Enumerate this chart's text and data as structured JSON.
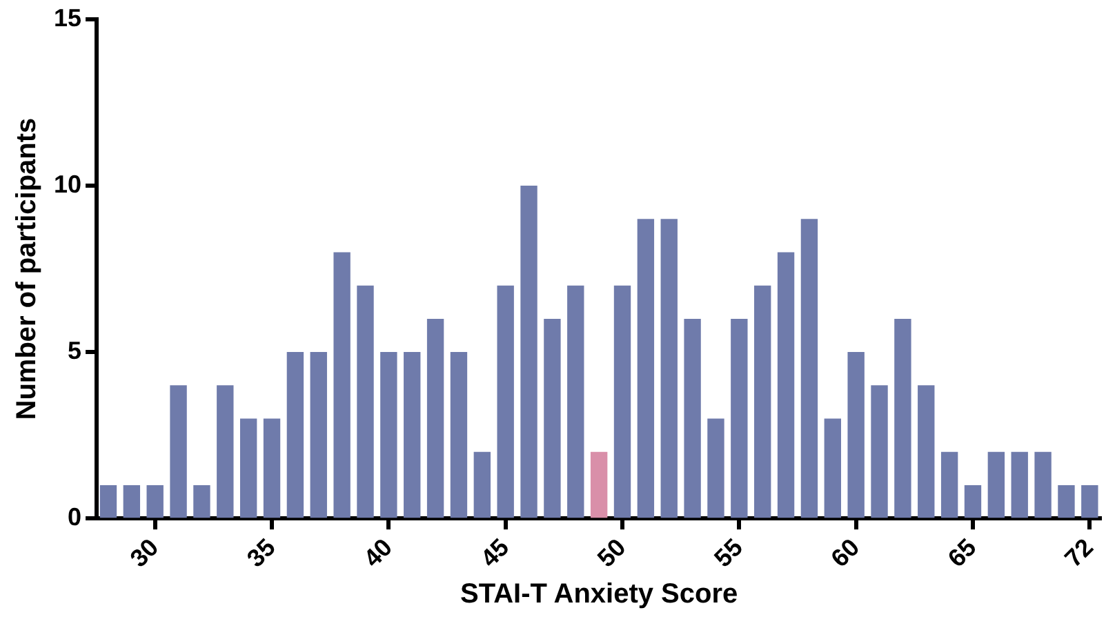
{
  "chart_data": {
    "type": "bar",
    "xlabel": "STAI-T Anxiety Score",
    "ylabel": "Number of participants",
    "categories": [
      null,
      null,
      "30",
      null,
      null,
      null,
      null,
      "35",
      null,
      null,
      null,
      null,
      "40",
      null,
      null,
      null,
      null,
      "45",
      null,
      null,
      null,
      null,
      "50",
      null,
      null,
      null,
      null,
      "55",
      null,
      null,
      null,
      null,
      "60",
      null,
      null,
      null,
      null,
      "65",
      null,
      null,
      null,
      null,
      "72"
    ],
    "values": [
      1,
      1,
      1,
      4,
      1,
      4,
      3,
      3,
      5,
      5,
      8,
      7,
      5,
      5,
      6,
      5,
      2,
      7,
      10,
      6,
      7,
      2,
      7,
      9,
      9,
      6,
      3,
      6,
      7,
      8,
      9,
      3,
      5,
      4,
      6,
      4,
      2,
      1,
      2,
      2,
      2,
      1,
      1
    ],
    "colors": [
      "#6f7bab",
      "#6f7bab",
      "#6f7bab",
      "#6f7bab",
      "#6f7bab",
      "#6f7bab",
      "#6f7bab",
      "#6f7bab",
      "#6f7bab",
      "#6f7bab",
      "#6f7bab",
      "#6f7bab",
      "#6f7bab",
      "#6f7bab",
      "#6f7bab",
      "#6f7bab",
      "#6f7bab",
      "#6f7bab",
      "#6f7bab",
      "#6f7bab",
      "#6f7bab",
      "#d98fa9",
      "#6f7bab",
      "#6f7bab",
      "#6f7bab",
      "#6f7bab",
      "#6f7bab",
      "#6f7bab",
      "#6f7bab",
      "#6f7bab",
      "#6f7bab",
      "#6f7bab",
      "#6f7bab",
      "#6f7bab",
      "#6f7bab",
      "#6f7bab",
      "#6f7bab",
      "#6f7bab",
      "#6f7bab",
      "#6f7bab",
      "#6f7bab",
      "#6f7bab",
      "#6f7bab"
    ],
    "ylim": [
      0,
      15
    ],
    "yticks": [
      0,
      5,
      10,
      15
    ],
    "grid": false,
    "legend": false
  }
}
